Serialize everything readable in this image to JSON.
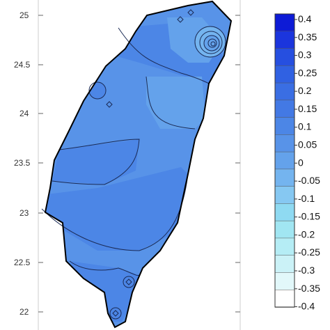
{
  "map": {
    "latitude_ticks": [
      "25",
      "24.5",
      "24",
      "23.5",
      "23",
      "22.5",
      "22"
    ]
  },
  "colorbar": {
    "labels": [
      "0.4",
      "0.35",
      "0.3",
      "0.25",
      "0.2",
      "0.15",
      "0.1",
      "0.05",
      "0",
      "-0.05",
      "-0.1",
      "-0.15",
      "-0.2",
      "-0.25",
      "-0.3",
      "-0.35",
      "-0.4"
    ],
    "colors": [
      "#0d1bd6",
      "#1b35dd",
      "#264fe0",
      "#3061e2",
      "#3a6ee3",
      "#4379e4",
      "#4c86e6",
      "#5893e8",
      "#64a2eb",
      "#74b4ef",
      "#86c8f2",
      "#8fdaf2",
      "#a1e6f2",
      "#b5edf5",
      "#cbf2f7",
      "#e2f8fa",
      "#ffffff"
    ]
  },
  "colors": {
    "region_high": "#4c86e6",
    "region_main": "#5893e8",
    "region_low": "#64a2eb",
    "region_lower": "#74b4ef",
    "coast_outline": "#000000",
    "contour_line": "#1a2a55"
  }
}
